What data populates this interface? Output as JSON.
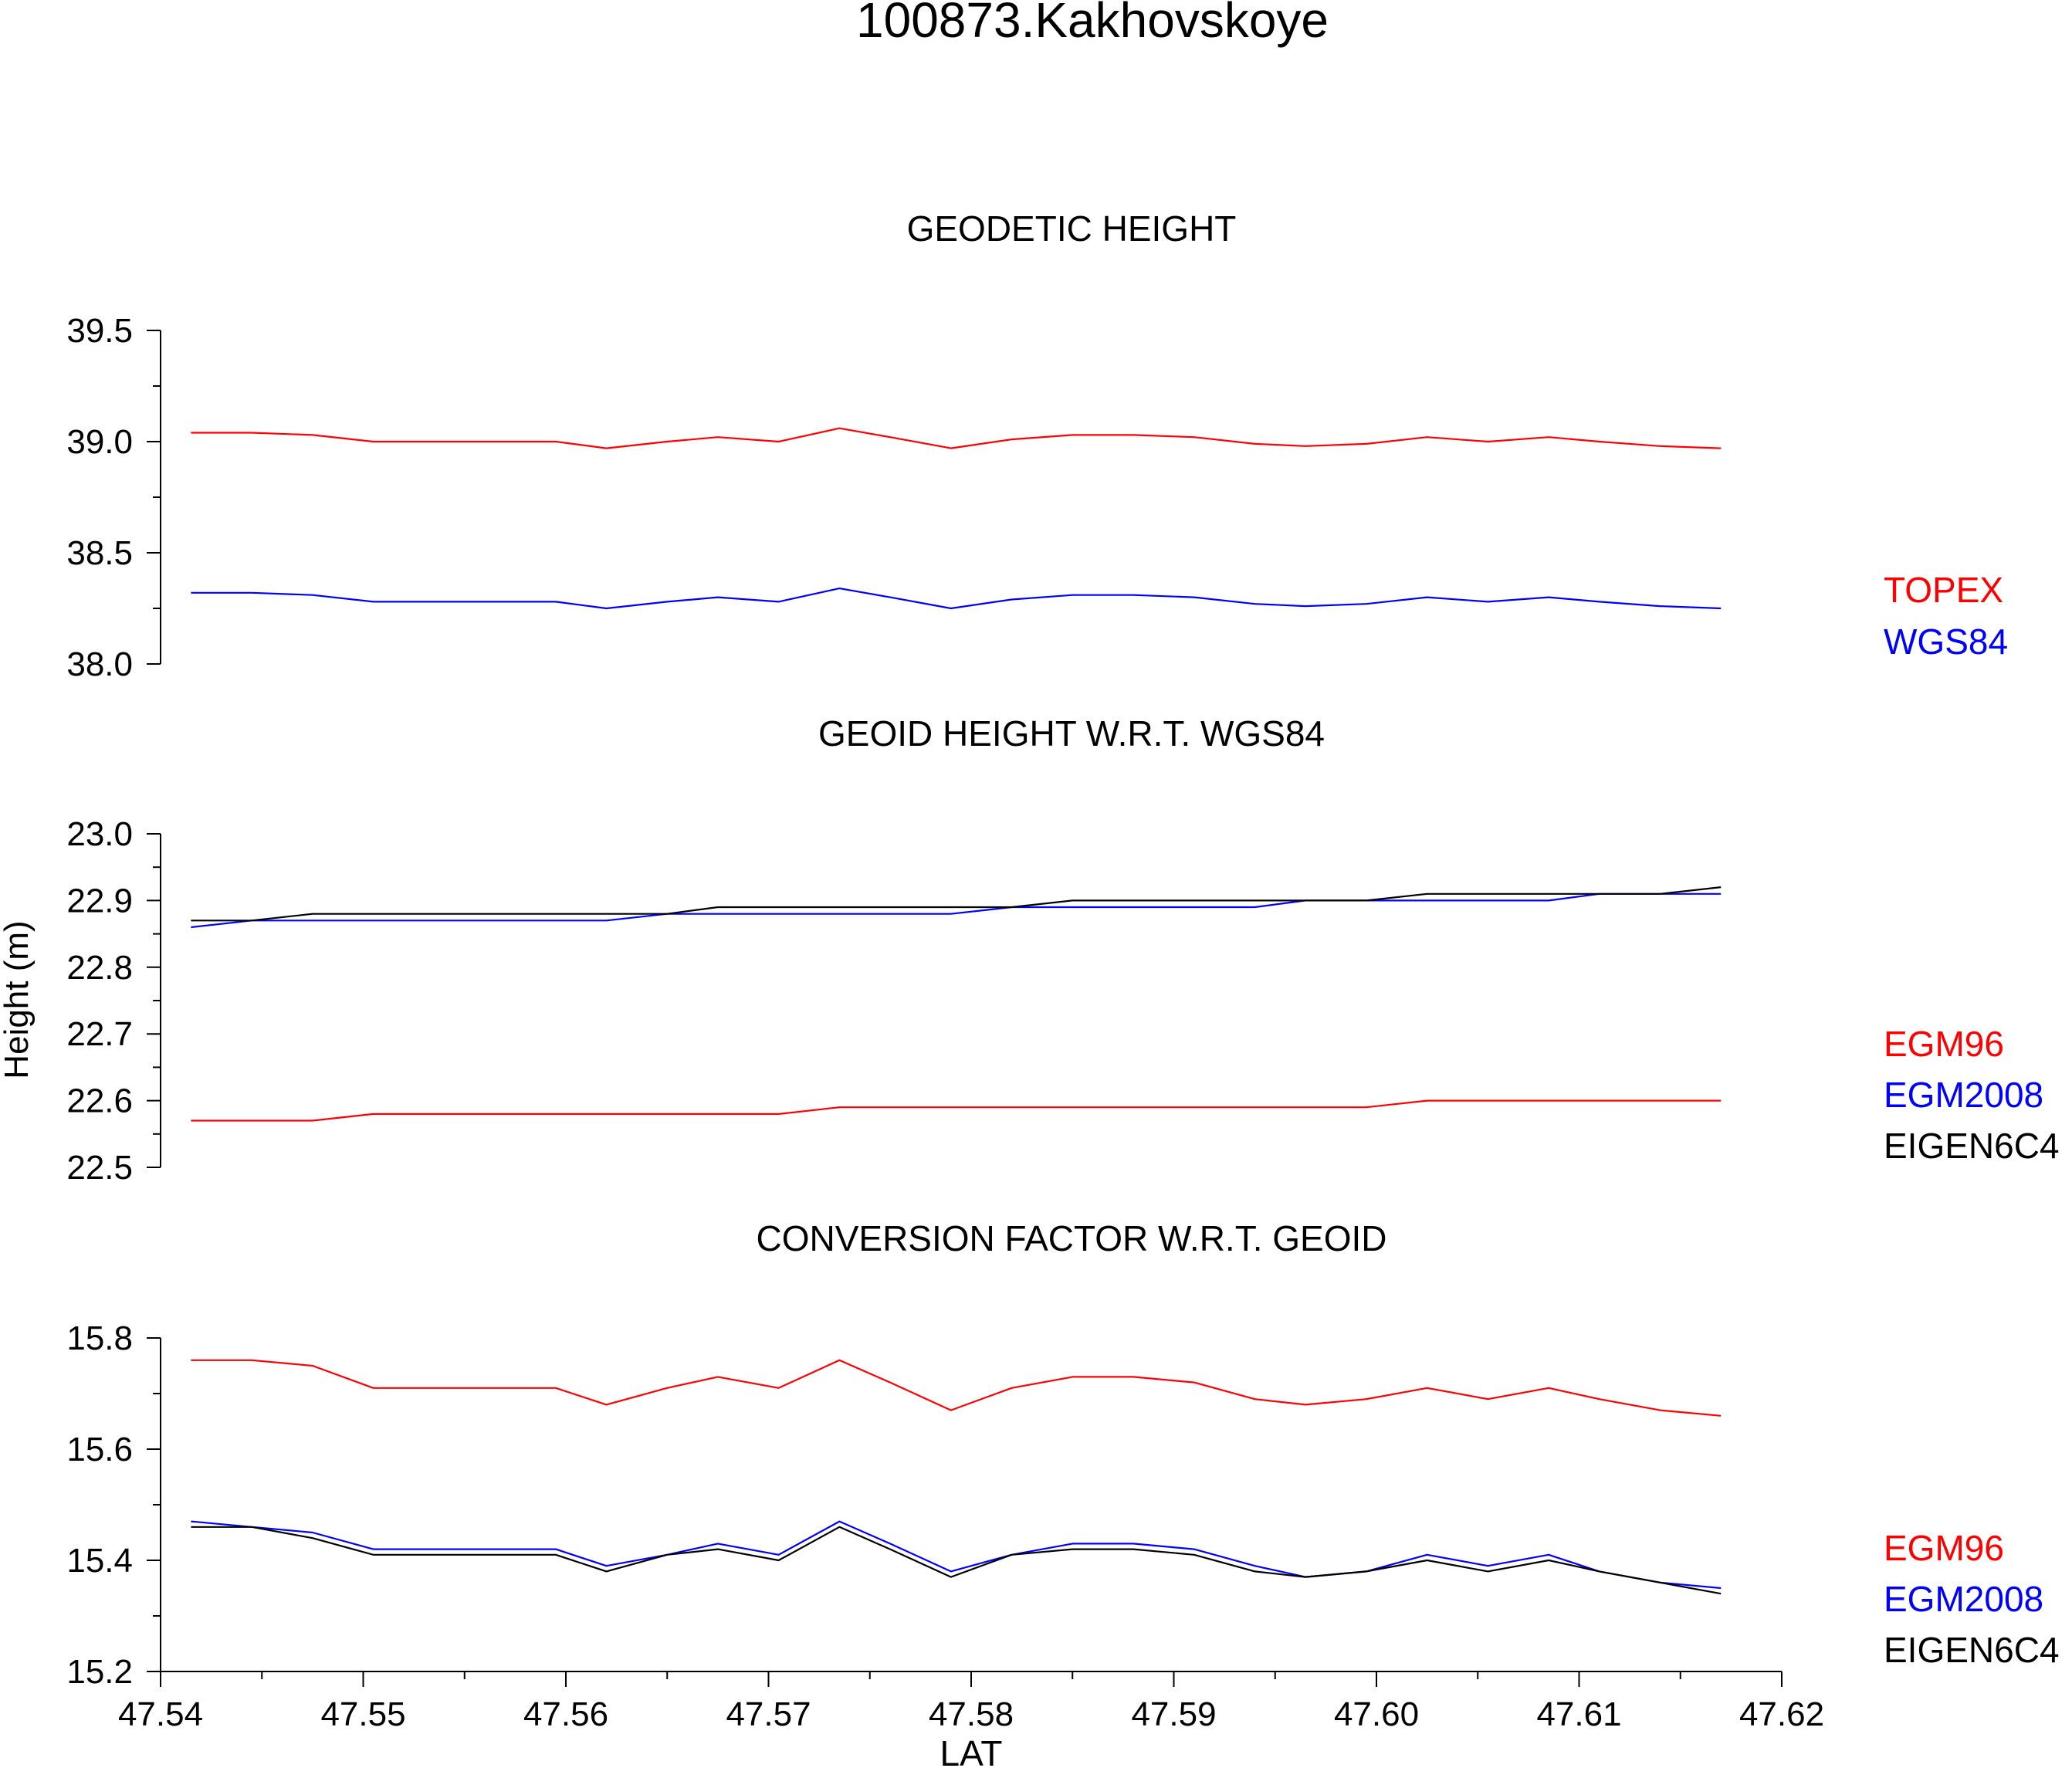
{
  "chart_data": {
    "type": "line",
    "title": "100873.Kakhovskoye",
    "ylabel": "Height (m)",
    "xlabel": "LAT",
    "xlim": [
      47.54,
      47.62
    ],
    "x_ticks": [
      47.54,
      47.55,
      47.56,
      47.57,
      47.58,
      47.59,
      47.6,
      47.61,
      47.62
    ],
    "x_tick_labels": [
      "47.54",
      "47.55",
      "47.56",
      "47.57",
      "47.58",
      "47.59",
      "47.60",
      "47.61",
      "47.62"
    ],
    "grid": false,
    "legend_position": "right",
    "x": [
      47.5415,
      47.5445,
      47.5475,
      47.5505,
      47.5535,
      47.5565,
      47.5595,
      47.562,
      47.565,
      47.5675,
      47.5705,
      47.5735,
      47.576,
      47.579,
      47.582,
      47.585,
      47.588,
      47.591,
      47.594,
      47.5965,
      47.5995,
      47.6025,
      47.6055,
      47.6085,
      47.611,
      47.614,
      47.617
    ],
    "panels": [
      {
        "title": "GEODETIC HEIGHT",
        "ylim": [
          38.0,
          39.5
        ],
        "y_ticks": [
          38.0,
          38.5,
          39.0,
          39.5
        ],
        "y_tick_labels": [
          "38.0",
          "38.5",
          "39.0",
          "39.5"
        ],
        "series": [
          {
            "name": "TOPEX",
            "color": "#ff0000",
            "values": [
              39.04,
              39.04,
              39.03,
              39.0,
              39.0,
              39.0,
              39.0,
              38.97,
              39.0,
              39.02,
              39.0,
              39.06,
              39.02,
              38.97,
              39.01,
              39.03,
              39.03,
              39.02,
              38.99,
              38.98,
              38.99,
              39.02,
              39.0,
              39.02,
              39.0,
              38.98,
              38.97
            ]
          },
          {
            "name": "WGS84",
            "color": "#0000ff",
            "values": [
              38.32,
              38.32,
              38.31,
              38.28,
              38.28,
              38.28,
              38.28,
              38.25,
              38.28,
              38.3,
              38.28,
              38.34,
              38.3,
              38.25,
              38.29,
              38.31,
              38.31,
              38.3,
              38.27,
              38.26,
              38.27,
              38.3,
              38.28,
              38.3,
              38.28,
              38.26,
              38.25
            ]
          }
        ]
      },
      {
        "title": "GEOID HEIGHT W.R.T. WGS84",
        "ylim": [
          22.5,
          23.0
        ],
        "y_ticks": [
          22.5,
          22.6,
          22.7,
          22.8,
          22.9,
          23.0
        ],
        "y_tick_labels": [
          "22.5",
          "22.6",
          "22.7",
          "22.8",
          "22.9",
          "23.0"
        ],
        "series": [
          {
            "name": "EGM96",
            "color": "#ff0000",
            "values": [
              22.57,
              22.57,
              22.57,
              22.58,
              22.58,
              22.58,
              22.58,
              22.58,
              22.58,
              22.58,
              22.58,
              22.59,
              22.59,
              22.59,
              22.59,
              22.59,
              22.59,
              22.59,
              22.59,
              22.59,
              22.59,
              22.6,
              22.6,
              22.6,
              22.6,
              22.6,
              22.6
            ]
          },
          {
            "name": "EGM2008",
            "color": "#0000ff",
            "values": [
              22.86,
              22.87,
              22.87,
              22.87,
              22.87,
              22.87,
              22.87,
              22.87,
              22.88,
              22.88,
              22.88,
              22.88,
              22.88,
              22.88,
              22.89,
              22.89,
              22.89,
              22.89,
              22.89,
              22.9,
              22.9,
              22.9,
              22.9,
              22.9,
              22.91,
              22.91,
              22.91
            ]
          },
          {
            "name": "EIGEN6C4",
            "color": "#000000",
            "values": [
              22.87,
              22.87,
              22.88,
              22.88,
              22.88,
              22.88,
              22.88,
              22.88,
              22.88,
              22.89,
              22.89,
              22.89,
              22.89,
              22.89,
              22.89,
              22.9,
              22.9,
              22.9,
              22.9,
              22.9,
              22.9,
              22.91,
              22.91,
              22.91,
              22.91,
              22.91,
              22.92
            ]
          }
        ]
      },
      {
        "title": "CONVERSION FACTOR W.R.T. GEOID",
        "ylim": [
          15.2,
          15.8
        ],
        "y_ticks": [
          15.2,
          15.4,
          15.6,
          15.8
        ],
        "y_tick_labels": [
          "15.2",
          "15.4",
          "15.6",
          "15.8"
        ],
        "series": [
          {
            "name": "EGM96",
            "color": "#ff0000",
            "values": [
              15.76,
              15.76,
              15.75,
              15.71,
              15.71,
              15.71,
              15.71,
              15.68,
              15.71,
              15.73,
              15.71,
              15.76,
              15.72,
              15.67,
              15.71,
              15.73,
              15.73,
              15.72,
              15.69,
              15.68,
              15.69,
              15.71,
              15.69,
              15.71,
              15.69,
              15.67,
              15.66
            ]
          },
          {
            "name": "EGM2008",
            "color": "#0000ff",
            "values": [
              15.47,
              15.46,
              15.45,
              15.42,
              15.42,
              15.42,
              15.42,
              15.39,
              15.41,
              15.43,
              15.41,
              15.47,
              15.43,
              15.38,
              15.41,
              15.43,
              15.43,
              15.42,
              15.39,
              15.37,
              15.38,
              15.41,
              15.39,
              15.41,
              15.38,
              15.36,
              15.35
            ]
          },
          {
            "name": "EIGEN6C4",
            "color": "#000000",
            "values": [
              15.46,
              15.46,
              15.44,
              15.41,
              15.41,
              15.41,
              15.41,
              15.38,
              15.41,
              15.42,
              15.4,
              15.46,
              15.42,
              15.37,
              15.41,
              15.42,
              15.42,
              15.41,
              15.38,
              15.37,
              15.38,
              15.4,
              15.38,
              15.4,
              15.38,
              15.36,
              15.34
            ]
          }
        ]
      }
    ]
  }
}
